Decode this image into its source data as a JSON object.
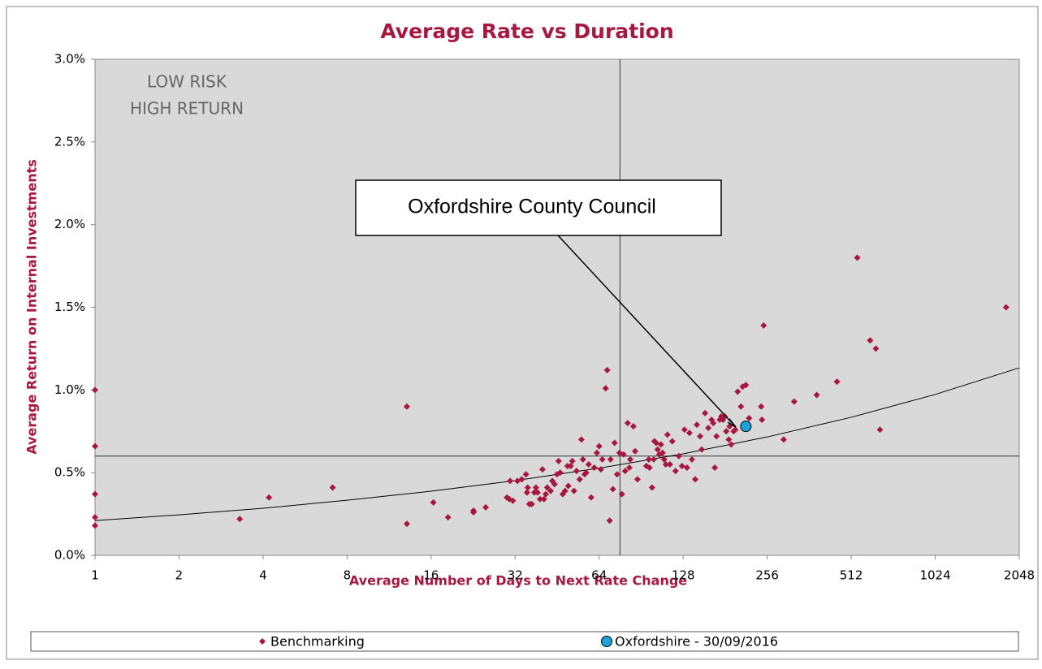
{
  "chart_data": {
    "type": "scatter",
    "title": "Average Rate vs Duration",
    "x_label": "Average Number of Days to Next Rate Change",
    "y_label": "Average Return on Internal Investments",
    "x_log_base": 2,
    "xlim": [
      1,
      2048
    ],
    "xticks": [
      1,
      2,
      4,
      8,
      16,
      32,
      64,
      128,
      256,
      512,
      1024,
      2048
    ],
    "ylim": [
      0,
      3.0
    ],
    "yticks": [
      {
        "value": 0,
        "label": "0.0%"
      },
      {
        "value": 0.5,
        "label": "0.5%"
      },
      {
        "value": 1.0,
        "label": "1.0%"
      },
      {
        "value": 1.5,
        "label": "1.5%"
      },
      {
        "value": 2.0,
        "label": "2.0%"
      },
      {
        "value": 2.5,
        "label": "2.5%"
      },
      {
        "value": 3.0,
        "label": "3.0%"
      }
    ],
    "reference_x": 76,
    "reference_y": 0.6,
    "quadrant_label": [
      "LOW RISK",
      "HIGH RETURN"
    ],
    "callout": "Oxfordshire County Council",
    "series": [
      {
        "name": "Benchmarking",
        "color": "#a8173f",
        "marker": "diamond",
        "x": [
          1,
          1,
          1,
          1,
          1,
          3.3,
          4.2,
          7.1,
          13.1,
          13.1,
          16.3,
          18.4,
          22.7,
          22.7,
          25.1,
          29.9,
          30.5,
          31.4,
          30.7,
          32.6,
          33.8,
          35.0,
          35.3,
          35.5,
          36.0,
          36.7,
          37.5,
          38.0,
          38.5,
          39.3,
          40.1,
          40.6,
          41.2,
          41.7,
          42.9,
          43.5,
          44.3,
          45.2,
          45.8,
          46.4,
          47.4,
          48.3,
          49.3,
          49.6,
          50.6,
          51.3,
          52.0,
          53.1,
          54.5,
          55.3,
          56.0,
          56.8,
          57.5,
          58.7,
          59.9,
          61.5,
          62.8,
          64,
          64.9,
          65.7,
          67.5,
          68.4,
          69.8,
          70.3,
          71.7,
          72.7,
          74.2,
          75.7,
          77.2,
          78.3,
          79.3,
          81.0,
          82.1,
          82.7,
          84.9,
          86.1,
          87.8,
          94.5,
          96.4,
          97.0,
          99.0,
          100.4,
          101.0,
          102.4,
          103.7,
          105.1,
          106.5,
          108,
          109.4,
          110.9,
          112.4,
          114.7,
          117.0,
          120.2,
          123.5,
          126.8,
          129.4,
          132.1,
          134.8,
          137.6,
          141.4,
          143.3,
          147.2,
          149.2,
          153.3,
          157.5,
          161.8,
          164.0,
          166.2,
          168.5,
          173.1,
          175.4,
          177.8,
          180.2,
          182.6,
          186.4,
          187.6,
          190.2,
          194.1,
          196.7,
          200.7,
          206.2,
          209.0,
          214.7,
          220.5,
          243.6,
          245.2,
          248.6,
          293.3,
          319.8,
          385.2,
          455.3,
          538.3,
          598.5,
          627.4,
          648.9,
          1837
        ],
        "values": [
          1.0,
          0.66,
          0.37,
          0.23,
          0.18,
          0.22,
          0.35,
          0.41,
          0.9,
          0.19,
          0.32,
          0.23,
          0.27,
          0.26,
          0.29,
          0.35,
          0.34,
          0.33,
          0.45,
          0.45,
          0.46,
          0.49,
          0.38,
          0.41,
          0.31,
          0.31,
          0.38,
          0.41,
          0.38,
          0.34,
          0.52,
          0.34,
          0.37,
          0.41,
          0.39,
          0.45,
          0.43,
          0.49,
          0.57,
          0.5,
          0.37,
          0.39,
          0.54,
          0.42,
          0.54,
          0.57,
          0.39,
          0.51,
          0.46,
          0.7,
          0.58,
          0.49,
          0.5,
          0.55,
          0.35,
          0.53,
          0.62,
          0.66,
          0.52,
          0.58,
          1.01,
          1.12,
          0.21,
          0.58,
          0.4,
          0.68,
          0.49,
          0.62,
          0.37,
          0.61,
          0.51,
          0.8,
          0.53,
          0.58,
          0.78,
          0.63,
          0.46,
          0.54,
          0.58,
          0.53,
          0.41,
          0.58,
          0.69,
          0.68,
          0.64,
          0.61,
          0.67,
          0.62,
          0.58,
          0.55,
          0.73,
          0.55,
          0.69,
          0.51,
          0.6,
          0.54,
          0.76,
          0.53,
          0.74,
          0.58,
          0.46,
          0.79,
          0.72,
          0.64,
          0.86,
          0.77,
          0.82,
          0.8,
          0.53,
          0.72,
          0.82,
          0.84,
          0.82,
          0.84,
          0.75,
          0.7,
          0.78,
          0.67,
          0.75,
          0.76,
          0.99,
          0.9,
          1.02,
          1.03,
          0.83,
          0.9,
          0.82,
          1.39,
          0.7,
          0.93,
          0.97,
          1.05,
          1.8,
          1.3,
          1.25,
          0.76,
          1.5
        ]
      },
      {
        "name": "Oxfordshire - 30/09/2016",
        "color": "#1ca3dd",
        "marker": "circle",
        "x": [
          214.7
        ],
        "values": [
          0.78
        ]
      }
    ],
    "trendline": {
      "color": "#000000",
      "x": [
        1,
        2,
        4,
        8,
        16,
        32,
        64,
        128,
        256,
        512,
        1024,
        2048
      ],
      "values": [
        0.21,
        0.245,
        0.285,
        0.333,
        0.388,
        0.452,
        0.527,
        0.614,
        0.716,
        0.835,
        0.973,
        1.134
      ]
    }
  }
}
